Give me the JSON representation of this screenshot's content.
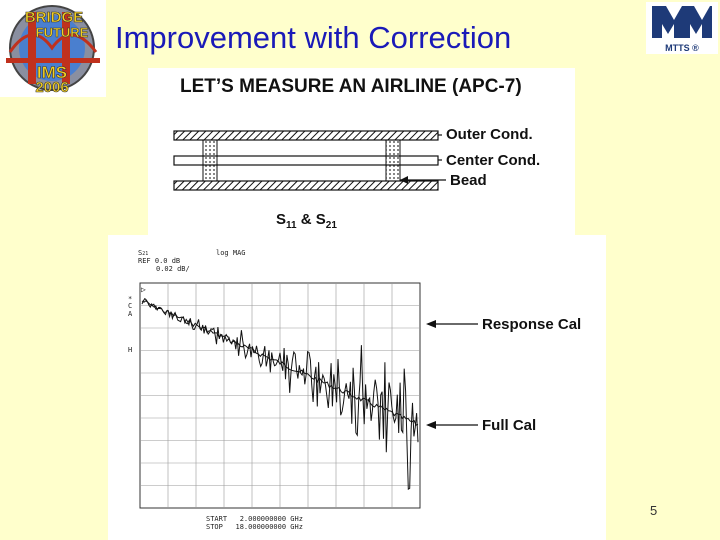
{
  "slide": {
    "title": "Improvement with Correction",
    "number": "5"
  },
  "logo_left": {
    "text_bridge": "BRIDGE",
    "text_future": "FUTURE",
    "text_event": "IMS",
    "text_year": "2006"
  },
  "logo_right": {
    "text": "MTTS ®"
  },
  "airline_figure": {
    "heading": "LET’S MEASURE AN AIRLINE (APC-7)",
    "labels": {
      "outer": "Outer Cond.",
      "center": "Center Cond.",
      "bead": "Bead"
    },
    "params_prefix": "S",
    "params_sub1": "11",
    "params_joiner": " & S",
    "params_sub2": "21"
  },
  "analyzer_plot": {
    "param_label": "S",
    "param_sub": "21",
    "format": "log MAG",
    "ref": "REF 0.0 dB",
    "scale": "0.02 dB/",
    "marker_labels": [
      "*",
      "C",
      "A",
      "H"
    ],
    "ref_marker": "▷",
    "start": "START   2.000000000 GHz",
    "stop": "STOP   18.000000000 GHz",
    "annotation_response": "Response Cal",
    "annotation_full": "Full Cal"
  }
}
